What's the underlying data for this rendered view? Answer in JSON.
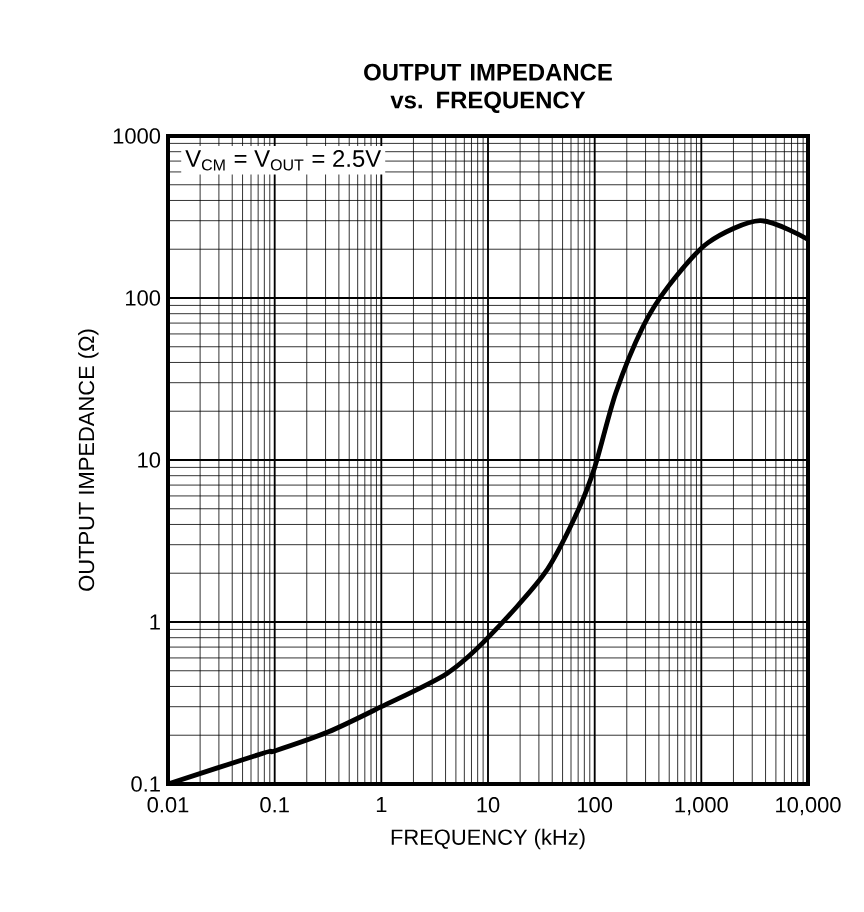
{
  "chart_data": {
    "type": "line",
    "title": "OUTPUT IMPEDANCE\nvs. FREQUENCY",
    "xlabel": "FREQUENCY (kHz)",
    "ylabel": "OUTPUT IMPEDANCE (Ω)",
    "log": "xy",
    "grid": true,
    "xlim": [
      0.01,
      10000
    ],
    "ylim": [
      0.1,
      1000
    ],
    "xticks": [
      0.01,
      0.1,
      1,
      10,
      100,
      {
        "value": 1000,
        "label": "1,000"
      },
      {
        "value": 10000,
        "label": "10,000"
      }
    ],
    "yticks": [
      0.1,
      1,
      10,
      100,
      1000
    ],
    "annotations": [
      "V$_{CM}$ = V$_{OUT}$ = 2.5V"
    ],
    "series": [
      {
        "color": "#000000",
        "x": [
          0.01,
          0.078,
          0.1,
          0.32,
          1,
          4.1,
          10,
          34,
          68,
          100,
          158,
          282,
          490,
          1150,
          3550,
          10000
        ],
        "values": [
          0.1,
          0.155,
          0.16,
          0.21,
          0.3,
          0.48,
          0.8,
          2.0,
          4.7,
          9,
          26,
          66,
          118,
          219,
          300,
          230
        ]
      }
    ]
  }
}
